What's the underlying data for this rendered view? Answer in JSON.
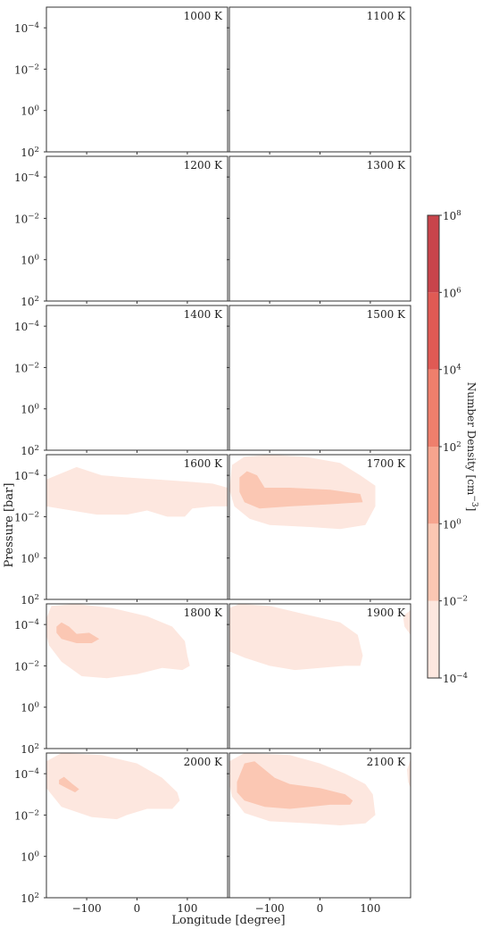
{
  "figure": {
    "ylabel": "Pressure [bar]",
    "xlabel": "Longitude [degree]"
  },
  "chart_data": {
    "type": "contour",
    "x_ticks": [
      -100,
      0,
      100
    ],
    "xlim": [
      -180,
      180
    ],
    "y_scale": "log",
    "ylim": [
      100,
      1e-05
    ],
    "y_ticks": [
      {
        "value": 0.0001,
        "mant": "10",
        "exp": "−4"
      },
      {
        "value": 0.01,
        "mant": "10",
        "exp": "−2"
      },
      {
        "value": 1,
        "mant": "10",
        "exp": "0"
      },
      {
        "value": 100,
        "mant": "10",
        "exp": "2"
      }
    ],
    "panels": [
      {
        "label": "1000 K",
        "blobs": []
      },
      {
        "label": "1100 K",
        "blobs": []
      },
      {
        "label": "1200 K",
        "blobs": []
      },
      {
        "label": "1300 K",
        "blobs": []
      },
      {
        "label": "1400 K",
        "blobs": []
      },
      {
        "label": "1500 K",
        "blobs": []
      },
      {
        "label": "1600 K",
        "blobs": [
          {
            "level": 0,
            "points": [
              [
                -180,
                -3.8
              ],
              [
                -160,
                -4.0
              ],
              [
                -120,
                -4.4
              ],
              [
                -70,
                -4.0
              ],
              [
                -20,
                -3.9
              ],
              [
                40,
                -3.8
              ],
              [
                100,
                -3.7
              ],
              [
                150,
                -3.6
              ],
              [
                180,
                -3.4
              ],
              [
                180,
                -2.5
              ],
              [
                150,
                -2.5
              ],
              [
                110,
                -2.4
              ],
              [
                95,
                -2.0
              ],
              [
                60,
                -2.0
              ],
              [
                20,
                -2.3
              ],
              [
                -20,
                -2.1
              ],
              [
                -80,
                -2.1
              ],
              [
                -130,
                -2.3
              ],
              [
                -180,
                -2.5
              ]
            ]
          }
        ]
      },
      {
        "label": "1700 K",
        "blobs": [
          {
            "level": 0,
            "points": [
              [
                -175,
                -4.5
              ],
              [
                -150,
                -4.9
              ],
              [
                -100,
                -5.0
              ],
              [
                -30,
                -4.9
              ],
              [
                40,
                -4.6
              ],
              [
                80,
                -4.0
              ],
              [
                110,
                -3.5
              ],
              [
                110,
                -2.5
              ],
              [
                90,
                -1.6
              ],
              [
                40,
                -1.4
              ],
              [
                -20,
                -1.5
              ],
              [
                -100,
                -1.6
              ],
              [
                -140,
                -1.9
              ],
              [
                -170,
                -2.5
              ],
              [
                -180,
                -3.3
              ]
            ]
          },
          {
            "level": 1,
            "points": [
              [
                -160,
                -3.9
              ],
              [
                -145,
                -4.2
              ],
              [
                -125,
                -4.0
              ],
              [
                -110,
                -3.4
              ],
              [
                -60,
                -3.4
              ],
              [
                20,
                -3.3
              ],
              [
                80,
                -3.1
              ],
              [
                85,
                -2.7
              ],
              [
                20,
                -2.6
              ],
              [
                -60,
                -2.5
              ],
              [
                -120,
                -2.4
              ],
              [
                -150,
                -2.7
              ],
              [
                -160,
                -3.2
              ]
            ]
          }
        ]
      },
      {
        "label": "1800 K",
        "blobs": [
          {
            "level": 0,
            "points": [
              [
                -180,
                -4.3
              ],
              [
                -170,
                -4.9
              ],
              [
                -120,
                -5.0
              ],
              [
                -50,
                -4.8
              ],
              [
                20,
                -4.4
              ],
              [
                70,
                -3.9
              ],
              [
                95,
                -3.2
              ],
              [
                100,
                -2.5
              ],
              [
                105,
                -2.0
              ],
              [
                90,
                -1.8
              ],
              [
                50,
                -1.9
              ],
              [
                0,
                -1.6
              ],
              [
                -30,
                -1.5
              ],
              [
                -60,
                -1.4
              ],
              [
                -110,
                -1.5
              ],
              [
                -150,
                -2.2
              ],
              [
                -175,
                -3.0
              ],
              [
                -180,
                -3.5
              ]
            ]
          },
          {
            "level": 1,
            "points": [
              [
                -160,
                -3.9
              ],
              [
                -150,
                -4.1
              ],
              [
                -135,
                -3.9
              ],
              [
                -120,
                -3.55
              ],
              [
                -95,
                -3.6
              ],
              [
                -75,
                -3.3
              ],
              [
                -90,
                -3.1
              ],
              [
                -120,
                -3.1
              ],
              [
                -150,
                -3.3
              ],
              [
                -160,
                -3.6
              ]
            ]
          }
        ]
      },
      {
        "label": "1900 K",
        "blobs": [
          {
            "level": 0,
            "points": [
              [
                -180,
                -4.8
              ],
              [
                -160,
                -5.0
              ],
              [
                -100,
                -4.9
              ],
              [
                -30,
                -4.5
              ],
              [
                40,
                -4.1
              ],
              [
                75,
                -3.5
              ],
              [
                85,
                -2.5
              ],
              [
                80,
                -2.0
              ],
              [
                50,
                -2.0
              ],
              [
                0,
                -1.9
              ],
              [
                -50,
                -1.8
              ],
              [
                -100,
                -2.0
              ],
              [
                -150,
                -2.4
              ],
              [
                -180,
                -2.7
              ]
            ]
          },
          {
            "level": 0,
            "points": [
              [
                165,
                -4.4
              ],
              [
                180,
                -4.7
              ],
              [
                180,
                -3.5
              ],
              [
                168,
                -3.9
              ]
            ]
          }
        ]
      },
      {
        "label": "2000 K",
        "blobs": [
          {
            "level": 0,
            "points": [
              [
                -180,
                -4.6
              ],
              [
                -150,
                -5.0
              ],
              [
                -70,
                -4.9
              ],
              [
                0,
                -4.5
              ],
              [
                50,
                -3.8
              ],
              [
                80,
                -3.1
              ],
              [
                85,
                -2.7
              ],
              [
                70,
                -2.3
              ],
              [
                20,
                -2.3
              ],
              [
                -20,
                -2.0
              ],
              [
                -40,
                -1.8
              ],
              [
                -90,
                -1.9
              ],
              [
                -150,
                -2.4
              ],
              [
                -180,
                -3.3
              ]
            ]
          },
          {
            "level": 1,
            "points": [
              [
                -155,
                -3.7
              ],
              [
                -145,
                -3.85
              ],
              [
                -128,
                -3.5
              ],
              [
                -115,
                -3.25
              ],
              [
                -123,
                -3.1
              ],
              [
                -140,
                -3.3
              ],
              [
                -155,
                -3.5
              ]
            ]
          }
        ]
      },
      {
        "label": "2100 K",
        "blobs": [
          {
            "level": 0,
            "points": [
              [
                -180,
                -4.6
              ],
              [
                -150,
                -5.0
              ],
              [
                -60,
                -4.9
              ],
              [
                0,
                -4.5
              ],
              [
                50,
                -4.0
              ],
              [
                90,
                -3.5
              ],
              [
                105,
                -3.0
              ],
              [
                110,
                -2.0
              ],
              [
                90,
                -1.6
              ],
              [
                40,
                -1.5
              ],
              [
                -20,
                -1.6
              ],
              [
                -100,
                -1.7
              ],
              [
                -150,
                -2.1
              ],
              [
                -175,
                -2.9
              ],
              [
                -180,
                -3.5
              ]
            ]
          },
          {
            "level": 1,
            "points": [
              [
                -165,
                -3.6
              ],
              [
                -150,
                -4.5
              ],
              [
                -130,
                -4.6
              ],
              [
                -110,
                -4.2
              ],
              [
                -90,
                -3.8
              ],
              [
                -60,
                -3.5
              ],
              [
                0,
                -3.3
              ],
              [
                50,
                -3.0
              ],
              [
                65,
                -2.7
              ],
              [
                60,
                -2.5
              ],
              [
                20,
                -2.5
              ],
              [
                -20,
                -2.4
              ],
              [
                -60,
                -2.3
              ],
              [
                -110,
                -2.4
              ],
              [
                -150,
                -2.7
              ],
              [
                -165,
                -3.1
              ]
            ]
          },
          {
            "level": 0,
            "points": [
              [
                173,
                -4.2
              ],
              [
                180,
                -4.7
              ],
              [
                180,
                -3.3
              ],
              [
                175,
                -3.6
              ]
            ]
          }
        ]
      }
    ],
    "colorbar": {
      "title": "Number Density [cm",
      "title_exp": "−3",
      "title_close": "]",
      "levels": [
        {
          "mant": "10",
          "exp": "−4"
        },
        {
          "mant": "10",
          "exp": "−2"
        },
        {
          "mant": "10",
          "exp": "0"
        },
        {
          "mant": "10",
          "exp": "2"
        },
        {
          "mant": "10",
          "exp": "4"
        },
        {
          "mant": "10",
          "exp": "6"
        },
        {
          "mant": "10",
          "exp": "8"
        }
      ],
      "colors": [
        "#fde7df",
        "#fbc7b3",
        "#f6a48e",
        "#ef7f6c",
        "#e05a54",
        "#c8444b",
        "#a63f47"
      ]
    }
  }
}
